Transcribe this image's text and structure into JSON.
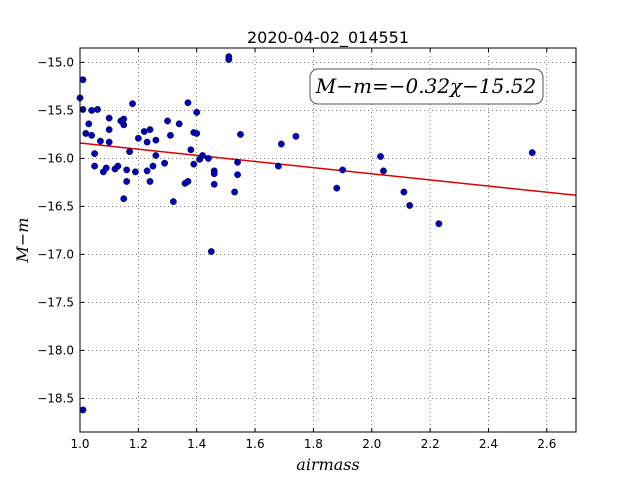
{
  "chart_data": {
    "type": "scatter",
    "title": "2020-04-02_014551",
    "xlabel": "airmass",
    "ylabel": "M−m",
    "xlim": [
      1.0,
      2.7
    ],
    "ylim": [
      -18.85,
      -14.85
    ],
    "x_ticks": [
      1.0,
      1.2,
      1.4,
      1.6,
      1.8,
      2.0,
      2.2,
      2.4,
      2.6
    ],
    "x_tick_labels": [
      "1.0",
      "1.2",
      "1.4",
      "1.6",
      "1.8",
      "2.0",
      "2.2",
      "2.4",
      "2.6"
    ],
    "y_ticks": [
      -15.0,
      -15.5,
      -16.0,
      -16.5,
      -17.0,
      -17.5,
      -18.0,
      -18.5
    ],
    "y_tick_labels": [
      "−15.0",
      "−15.5",
      "−16.0",
      "−16.5",
      "−17.0",
      "−17.5",
      "−18.0",
      "−18.5"
    ],
    "grid": true,
    "annotation": {
      "text": "M−m=−0.32χ−15.52",
      "position": "top-right"
    },
    "fit_line": {
      "slope": -0.32,
      "intercept": -15.52,
      "color": "#dd0000"
    },
    "point_color": "#0000bb",
    "points": [
      [
        1.0,
        -15.37
      ],
      [
        1.01,
        -15.18
      ],
      [
        1.01,
        -15.49
      ],
      [
        1.01,
        -18.62
      ],
      [
        1.02,
        -15.74
      ],
      [
        1.03,
        -15.64
      ],
      [
        1.04,
        -15.76
      ],
      [
        1.04,
        -15.5
      ],
      [
        1.05,
        -16.08
      ],
      [
        1.05,
        -15.95
      ],
      [
        1.06,
        -15.49
      ],
      [
        1.07,
        -15.82
      ],
      [
        1.08,
        -16.14
      ],
      [
        1.09,
        -16.1
      ],
      [
        1.1,
        -15.58
      ],
      [
        1.1,
        -15.7
      ],
      [
        1.1,
        -15.83
      ],
      [
        1.12,
        -16.11
      ],
      [
        1.13,
        -16.08
      ],
      [
        1.14,
        -15.61
      ],
      [
        1.15,
        -15.65
      ],
      [
        1.15,
        -16.42
      ],
      [
        1.15,
        -15.59
      ],
      [
        1.16,
        -16.24
      ],
      [
        1.16,
        -16.12
      ],
      [
        1.17,
        -15.93
      ],
      [
        1.18,
        -15.43
      ],
      [
        1.19,
        -16.14
      ],
      [
        1.2,
        -15.79
      ],
      [
        1.22,
        -15.72
      ],
      [
        1.23,
        -16.13
      ],
      [
        1.23,
        -15.83
      ],
      [
        1.24,
        -15.7
      ],
      [
        1.24,
        -16.24
      ],
      [
        1.25,
        -16.08
      ],
      [
        1.26,
        -15.81
      ],
      [
        1.26,
        -15.97
      ],
      [
        1.29,
        -16.05
      ],
      [
        1.3,
        -15.61
      ],
      [
        1.31,
        -15.76
      ],
      [
        1.32,
        -16.45
      ],
      [
        1.34,
        -15.64
      ],
      [
        1.36,
        -16.26
      ],
      [
        1.37,
        -16.24
      ],
      [
        1.37,
        -15.42
      ],
      [
        1.38,
        -15.91
      ],
      [
        1.39,
        -15.73
      ],
      [
        1.39,
        -16.06
      ],
      [
        1.4,
        -15.74
      ],
      [
        1.4,
        -15.52
      ],
      [
        1.41,
        -16.01
      ],
      [
        1.42,
        -15.97
      ],
      [
        1.44,
        -16.0
      ],
      [
        1.45,
        -16.97
      ],
      [
        1.46,
        -16.13
      ],
      [
        1.46,
        -16.16
      ],
      [
        1.46,
        -16.27
      ],
      [
        1.51,
        -14.94
      ],
      [
        1.51,
        -14.97
      ],
      [
        1.53,
        -16.35
      ],
      [
        1.54,
        -16.04
      ],
      [
        1.54,
        -16.17
      ],
      [
        1.55,
        -15.75
      ],
      [
        1.68,
        -16.08
      ],
      [
        1.69,
        -15.85
      ],
      [
        1.74,
        -15.77
      ],
      [
        1.88,
        -16.31
      ],
      [
        1.9,
        -16.12
      ],
      [
        2.03,
        -15.98
      ],
      [
        2.04,
        -16.13
      ],
      [
        2.11,
        -16.35
      ],
      [
        2.13,
        -16.49
      ],
      [
        2.23,
        -16.68
      ],
      [
        2.55,
        -15.94
      ]
    ]
  }
}
